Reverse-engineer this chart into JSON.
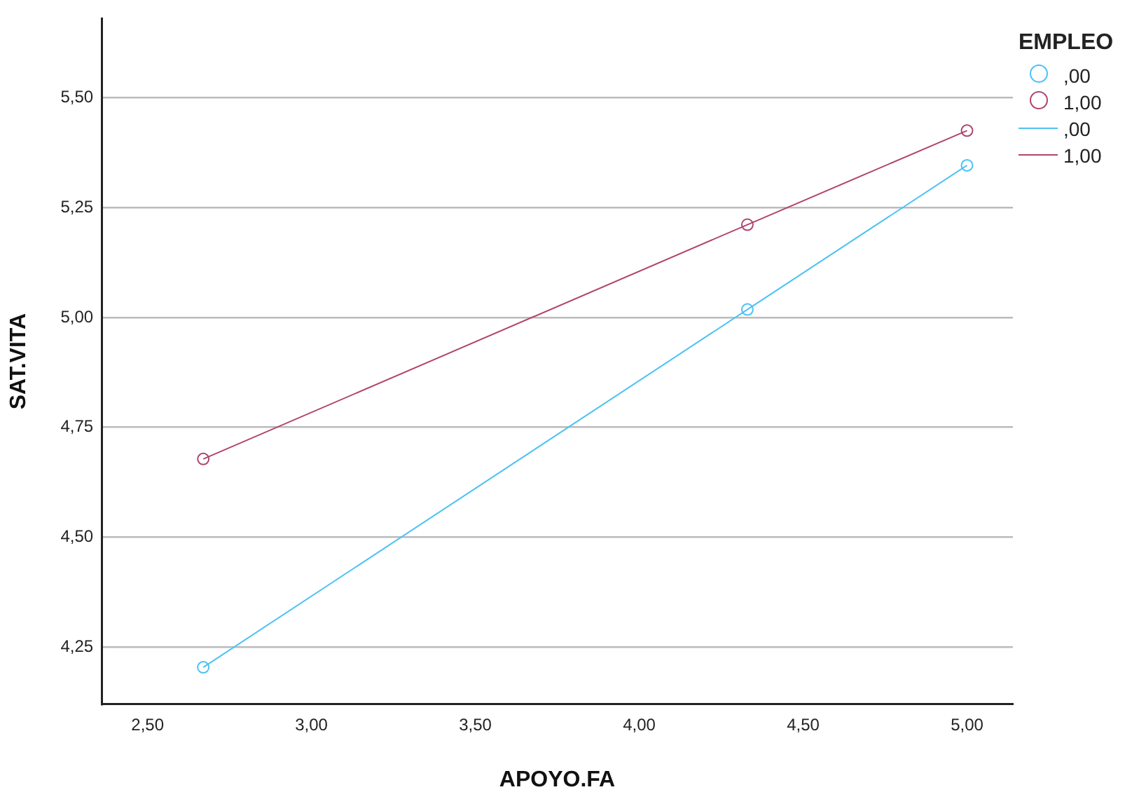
{
  "chart_data": {
    "type": "line",
    "xlabel": "APOYO.FA",
    "ylabel": "SAT.VITA",
    "legend_title": "EMPLEO",
    "x": [
      2.67,
      4.33,
      5.0
    ],
    "series": [
      {
        "name": ",00",
        "color": "#4cc2f5",
        "values": [
          4.204,
          5.018,
          5.346
        ]
      },
      {
        "name": "1,00",
        "color": "#b0456f",
        "values": [
          4.678,
          5.211,
          5.425
        ]
      }
    ],
    "xlim": [
      2.36,
      5.14
    ],
    "xticks": [
      {
        "value": 2.5,
        "label": "2,50"
      },
      {
        "value": 3.0,
        "label": "3,00"
      },
      {
        "value": 3.5,
        "label": "3,50"
      },
      {
        "value": 4.0,
        "label": "4,00"
      },
      {
        "value": 4.5,
        "label": "4,50"
      },
      {
        "value": 5.0,
        "label": "5,00"
      }
    ],
    "ylim": [
      4.12,
      5.68
    ],
    "yticks": [
      {
        "value": 4.25,
        "label": "4,25"
      },
      {
        "value": 4.5,
        "label": "4,50"
      },
      {
        "value": 4.75,
        "label": "4,75"
      },
      {
        "value": 5.0,
        "label": "5,00"
      },
      {
        "value": 5.25,
        "label": "5,25"
      },
      {
        "value": 5.5,
        "label": "5,50"
      }
    ],
    "grid": "y",
    "legend": "top right",
    "marker": "circle",
    "line_style": "solid"
  }
}
